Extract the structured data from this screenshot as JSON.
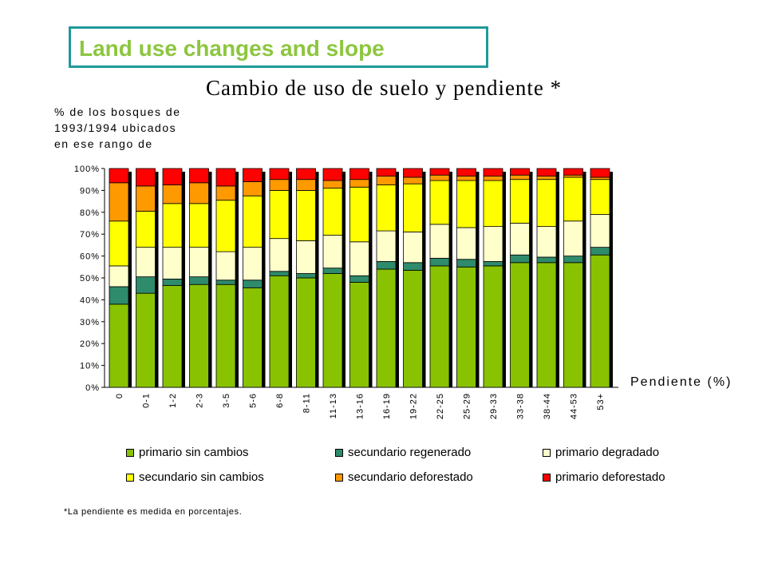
{
  "slide_title": "Land use changes and slope",
  "chart_data": {
    "type": "bar",
    "stacked": true,
    "percent_stacked": true,
    "title": "Cambio de uso de suelo y pendiente *",
    "ylabel_lines": [
      "% de los bosques de",
      "1993/1994 ubicados",
      "en ese rango de"
    ],
    "xlabel": "Pendiente (%)",
    "ylim": [
      0,
      100
    ],
    "yticks": [
      "0%",
      "10%",
      "20%",
      "30%",
      "40%",
      "50%",
      "60%",
      "70%",
      "80%",
      "90%",
      "100%"
    ],
    "grid": false,
    "legend_position": "bottom",
    "categories": [
      "0",
      "0-1",
      "1-2",
      "2-3",
      "3-5",
      "5-6",
      "6-8",
      "8-11",
      "11-13",
      "13-16",
      "16-19",
      "19-22",
      "22-25",
      "25-29",
      "29-33",
      "33-38",
      "38-44",
      "44-53",
      "53+"
    ],
    "series": [
      {
        "name": "primario sin cambios",
        "color": "#88c200",
        "values": [
          38,
          43,
          46.5,
          47,
          47,
          45.5,
          51,
          50,
          52,
          48,
          54,
          53.5,
          55.5,
          55,
          55.5,
          57,
          57,
          57,
          60.5
        ]
      },
      {
        "name": "secundario regenerado",
        "color": "#2e8b6b",
        "values": [
          8,
          7.5,
          3,
          3.5,
          2,
          3.5,
          2,
          2,
          2.5,
          3,
          3.5,
          3.5,
          3.5,
          3.5,
          2,
          3.5,
          2.5,
          3,
          3.5
        ]
      },
      {
        "name": "primario degradado",
        "color": "#ffffcc",
        "values": [
          9.5,
          13.5,
          14.5,
          13.5,
          13,
          15,
          15,
          15,
          15,
          15.5,
          14,
          14,
          15.5,
          14.5,
          16,
          14.5,
          14,
          16,
          15
        ]
      },
      {
        "name": "secundario sin cambios",
        "color": "#ffff00",
        "values": [
          20.5,
          16.5,
          20,
          20,
          23.5,
          23.5,
          22,
          23,
          21.5,
          25,
          21,
          22,
          20,
          21.5,
          21,
          20,
          21.5,
          20,
          16
        ]
      },
      {
        "name": "secundario deforestado",
        "color": "#ff9900",
        "values": [
          17.5,
          11.5,
          8.5,
          9.5,
          6.5,
          6.5,
          5,
          5,
          3.5,
          3.5,
          4,
          3,
          2.5,
          2,
          2,
          2,
          1.5,
          1,
          1
        ]
      },
      {
        "name": "primario deforestado",
        "color": "#ff0000",
        "values": [
          6.5,
          8,
          7.5,
          6.5,
          8,
          6,
          5,
          5,
          5.5,
          5,
          3.5,
          4,
          3,
          3.5,
          3.5,
          3,
          3.5,
          3,
          4
        ]
      }
    ]
  },
  "footnote": "*La pendiente es medida en porcentajes."
}
